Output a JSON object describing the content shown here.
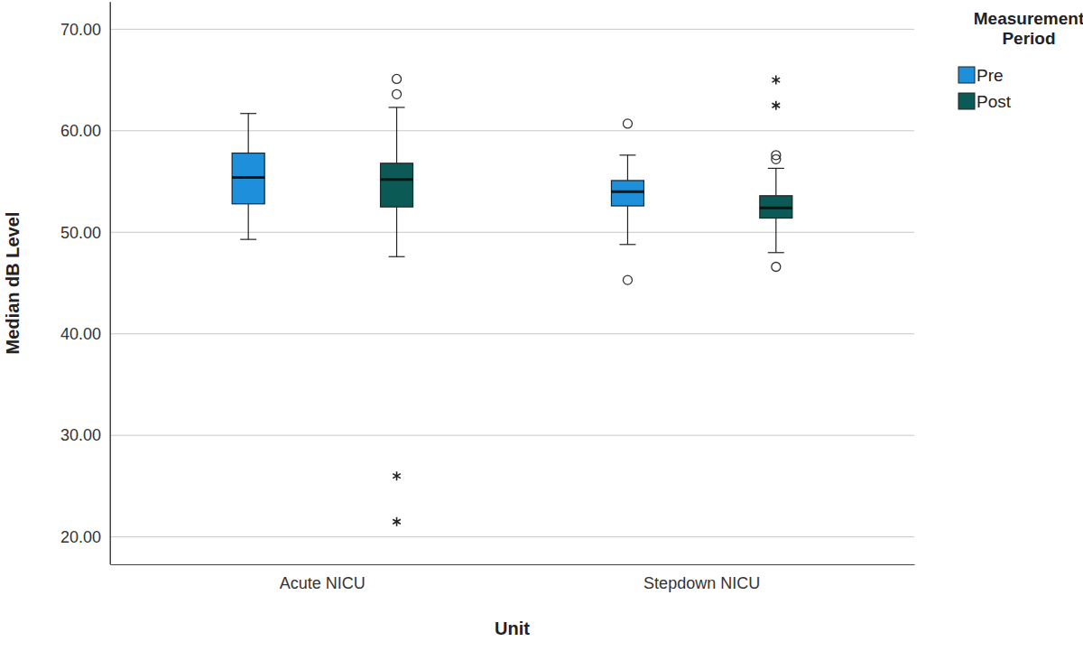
{
  "chart_data": {
    "type": "box",
    "x_label": "Unit",
    "y_label": "Median dB Level",
    "legend_title": "Measurement Period",
    "legend": "right",
    "grid": true,
    "categories": [
      "Acute NICU",
      "Stepdown NICU"
    ],
    "ylim": [
      17.3,
      72.7
    ],
    "yticks": [
      {
        "value": 20,
        "label": "20.00"
      },
      {
        "value": 30,
        "label": "30.00"
      },
      {
        "value": 40,
        "label": "40.00"
      },
      {
        "value": 50,
        "label": "50.00"
      },
      {
        "value": 60,
        "label": "60.00"
      },
      {
        "value": 70,
        "label": "70.00"
      }
    ],
    "series": [
      {
        "name": "Pre",
        "color": "#1e90db",
        "values": [
          {
            "whisker_low": 49.3,
            "q1": 52.8,
            "median": 55.4,
            "q3": 57.8,
            "whisker_high": 61.7,
            "outliers": [],
            "extremes": []
          },
          {
            "whisker_low": 48.8,
            "q1": 52.6,
            "median": 54.0,
            "q3": 55.1,
            "whisker_high": 57.6,
            "outliers": [
              60.7,
              45.3
            ],
            "extremes": []
          }
        ]
      },
      {
        "name": "Post",
        "color": "#0b5a55",
        "values": [
          {
            "whisker_low": 47.6,
            "q1": 52.5,
            "median": 55.2,
            "q3": 56.8,
            "whisker_high": 62.3,
            "outliers": [
              63.6,
              65.1
            ],
            "extremes": [
              26.0,
              21.5
            ]
          },
          {
            "whisker_low": 48.0,
            "q1": 51.4,
            "median": 52.4,
            "q3": 53.6,
            "whisker_high": 56.3,
            "outliers": [
              57.6,
              57.2,
              46.6
            ],
            "extremes": [
              62.5,
              65.0
            ]
          }
        ]
      }
    ]
  }
}
